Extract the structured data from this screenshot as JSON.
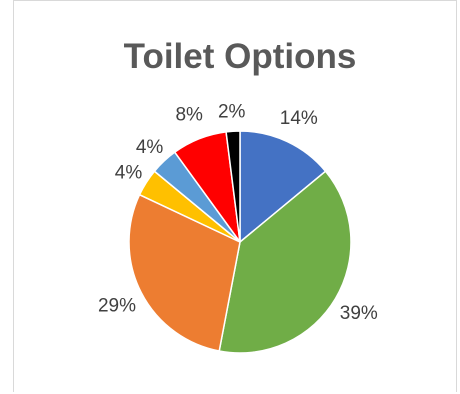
{
  "chart_data": {
    "type": "pie",
    "title": "Toilet Options",
    "slices": [
      {
        "label": "14%",
        "value": 14,
        "color": "#4472C4"
      },
      {
        "label": "39%",
        "value": 39,
        "color": "#70AD47"
      },
      {
        "label": "29%",
        "value": 29,
        "color": "#ED7D31"
      },
      {
        "label": "4%",
        "value": 4,
        "color": "#FFC000"
      },
      {
        "label": "4%",
        "value": 4,
        "color": "#5B9BD5"
      },
      {
        "label": "8%",
        "value": 8,
        "color": "#FF0000"
      },
      {
        "label": "2%",
        "value": 2,
        "color": "#000000"
      }
    ],
    "legend": "none"
  }
}
